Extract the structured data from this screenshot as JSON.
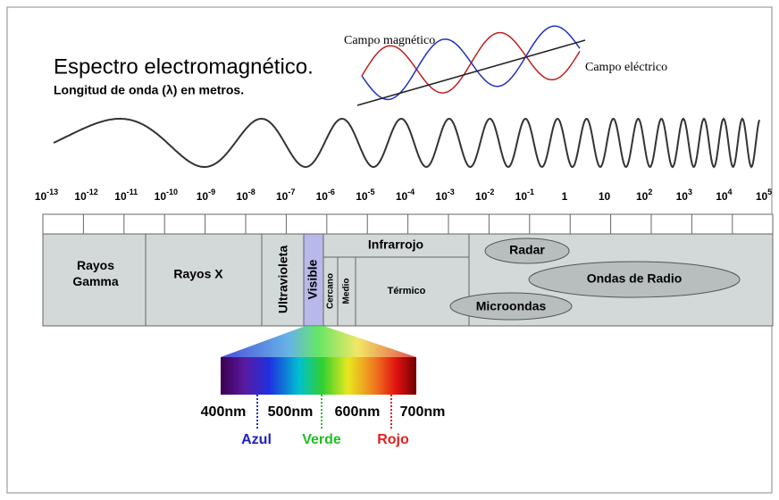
{
  "header": {
    "title": "Espectro electromagnético.",
    "subtitle": "Longitud de onda (λ) en metros."
  },
  "wave_labels": {
    "magnetic": "Campo magnético",
    "electric": "Campo eléctrico"
  },
  "scale": [
    {
      "base": "10",
      "exp": "-13"
    },
    {
      "base": "10",
      "exp": "-12"
    },
    {
      "base": "10",
      "exp": "-11"
    },
    {
      "base": "10",
      "exp": "-10"
    },
    {
      "base": "10",
      "exp": "-9"
    },
    {
      "base": "10",
      "exp": "-8"
    },
    {
      "base": "10",
      "exp": "-7"
    },
    {
      "base": "10",
      "exp": "-6"
    },
    {
      "base": "10",
      "exp": "-5"
    },
    {
      "base": "10",
      "exp": "-4"
    },
    {
      "base": "10",
      "exp": "-3"
    },
    {
      "base": "10",
      "exp": "-2"
    },
    {
      "base": "10",
      "exp": "-1"
    },
    {
      "base": "1"
    },
    {
      "base": "10"
    },
    {
      "base": "10",
      "exp": "2"
    },
    {
      "base": "10",
      "exp": "3"
    },
    {
      "base": "10",
      "exp": "4"
    },
    {
      "base": "10",
      "exp": "5"
    }
  ],
  "regions": {
    "gamma": "Rayos Gamma",
    "xray": "Rayos X",
    "uv": "Ultravioleta",
    "visible": "Visible",
    "infrared": "Infrarrojo",
    "near": "Cercano",
    "mid": "Medio",
    "thermal": "Térmico",
    "radar": "Radar",
    "radio": "Ondas de Radio",
    "microwave": "Microondas"
  },
  "spectrum": {
    "ticks": [
      "400nm",
      "500nm",
      "600nm",
      "700nm"
    ],
    "colors": [
      "Azul",
      "Verde",
      "Rojo"
    ]
  }
}
